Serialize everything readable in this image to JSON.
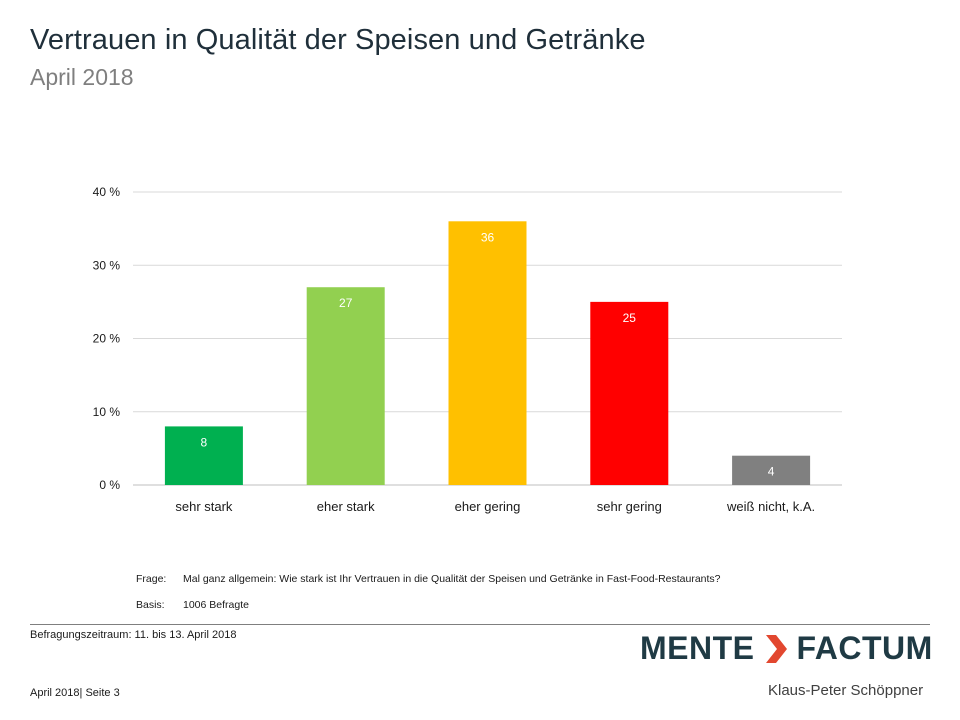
{
  "header": {
    "title": "Vertrauen in Qualität der Speisen und Getränke",
    "subtitle": "April 2018"
  },
  "chart_data": {
    "type": "bar",
    "categories": [
      "sehr stark",
      "eher stark",
      "eher gering",
      "sehr gering",
      "weiß nicht, k.A."
    ],
    "values": [
      8,
      27,
      36,
      25,
      4
    ],
    "colors": [
      "#00b050",
      "#92d050",
      "#ffc000",
      "#ff0000",
      "#808080"
    ],
    "data_labels": [
      "8",
      "27",
      "36",
      "25",
      "4"
    ],
    "ylim": [
      0,
      40
    ],
    "yticks": [
      0,
      10,
      20,
      30,
      40
    ],
    "ytick_labels": [
      "0 %",
      "10 %",
      "20 %",
      "30 %",
      "40 %"
    ],
    "grid": true,
    "xlabel": "",
    "ylabel": ""
  },
  "notes": {
    "question_label": "Frage:",
    "question_text": "Mal ganz allgemein: Wie stark ist Ihr Vertrauen in die Qualität der Speisen und Getränke in Fast-Food-Restaurants?",
    "basis_label": "Basis:",
    "basis_text": "1006 Befragte"
  },
  "footer": {
    "period": "Befragungszeitraum: 11. bis 13. April 2018",
    "page": "April 2018| Seite 3"
  },
  "logo": {
    "word1": "MENTE",
    "word2": "FACTUM",
    "author": "Klaus-Peter Schöppner",
    "accent_color": "#e2472f",
    "brand_color": "#1f3a44"
  }
}
